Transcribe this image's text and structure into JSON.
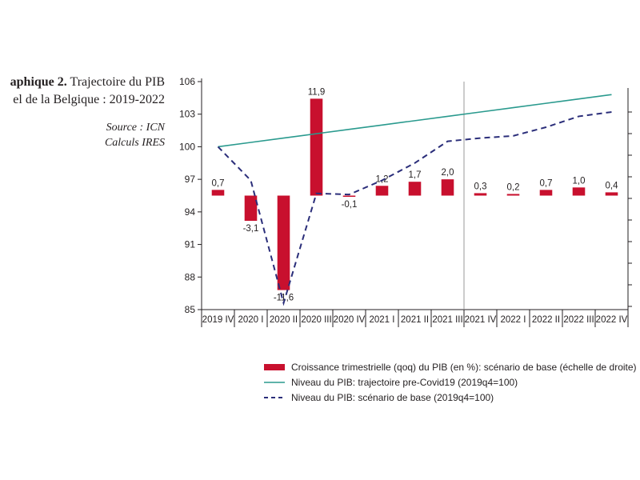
{
  "caption": {
    "title_bold": "aphique 2.",
    "title_rest": " Trajectoire du PIB",
    "title_line2": "el de la Belgique : 2019-2022",
    "source": "Source : ICN",
    "calculs": "Calculs IRES"
  },
  "chart_data": {
    "type": "bar+line",
    "categories": [
      "2019 IV",
      "2020 I",
      "2020 II",
      "2020 III",
      "2020 IV",
      "2021 I",
      "2021 II",
      "2021 III",
      "2021 IV",
      "2022 I",
      "2022 II",
      "2022 III",
      "2022 IV"
    ],
    "left_axis": {
      "ylim": [
        85,
        106
      ],
      "ticks": [
        85,
        88,
        91,
        94,
        97,
        100,
        103,
        106
      ]
    },
    "right_axis": {
      "zero_at_left": 95.5,
      "scale_left_per_pct": 0.75,
      "tick_labels_visible": false
    },
    "series": [
      {
        "name": "Croissance trimestrielle (qoq) du PIB (en %): scénario de base (échelle de droite)",
        "kind": "bar",
        "axis": "right",
        "color": "#c8102e",
        "values": [
          0.7,
          -3.1,
          -11.6,
          11.9,
          -0.1,
          1.2,
          1.7,
          2.0,
          0.3,
          0.2,
          0.7,
          1.0,
          0.4
        ],
        "labels": [
          "0,7",
          "-3,1",
          "-11,6",
          "11,9",
          "-0,1",
          "1,2",
          "1,7",
          "2,0",
          "0,3",
          "0,2",
          "0,7",
          "1,0",
          "0,4"
        ]
      },
      {
        "name": "Niveau du PIB: trajectoire pre-Covid19 (2019q4=100)",
        "kind": "line",
        "axis": "left",
        "color": "#2a9a8e",
        "dash": "solid",
        "values": [
          100.0,
          100.4,
          100.8,
          101.2,
          101.6,
          102.0,
          102.4,
          102.8,
          103.2,
          103.6,
          104.0,
          104.4,
          104.8
        ]
      },
      {
        "name": "Niveau du PIB: scénario de base (2019q4=100)",
        "kind": "line",
        "axis": "left",
        "color": "#2b2e7a",
        "dash": "dashed",
        "values": [
          100.0,
          96.9,
          85.6,
          95.7,
          95.6,
          96.9,
          98.5,
          100.5,
          100.8,
          101.0,
          101.8,
          102.8,
          103.2
        ]
      }
    ],
    "forecast_start_after": "2021 III",
    "grid": false,
    "legend_position": "bottom"
  }
}
